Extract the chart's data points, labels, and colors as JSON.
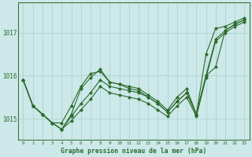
{
  "title": "Graphe pression niveau de la mer (hPa)",
  "bg_color": "#cce8e8",
  "grid_color": "#aacfcf",
  "line_color": "#2d6b2d",
  "xlim": [
    -0.5,
    23.5
  ],
  "ylim": [
    1014.5,
    1017.7
  ],
  "yticks": [
    1015,
    1016,
    1017
  ],
  "xticks": [
    0,
    1,
    2,
    3,
    4,
    5,
    6,
    7,
    8,
    9,
    10,
    11,
    12,
    13,
    14,
    15,
    16,
    17,
    18,
    19,
    20,
    21,
    22,
    23
  ],
  "lines": [
    [
      1015.9,
      1015.3,
      1015.1,
      1014.9,
      1014.75,
      1014.95,
      1015.2,
      1015.45,
      1015.75,
      1015.6,
      1015.55,
      1015.5,
      1015.45,
      1015.35,
      1015.2,
      1015.05,
      1015.3,
      1015.5,
      1015.05,
      1015.95,
      1016.8,
      1017.0,
      1017.15,
      1017.25
    ],
    [
      1015.9,
      1015.3,
      1015.1,
      1014.9,
      1014.75,
      1015.05,
      1015.35,
      1015.6,
      1015.9,
      1015.75,
      1015.7,
      1015.65,
      1015.6,
      1015.5,
      1015.35,
      1015.15,
      1015.4,
      1015.6,
      1015.1,
      1016.0,
      1016.85,
      1017.05,
      1017.2,
      1017.3
    ],
    [
      1015.9,
      1015.3,
      1015.1,
      1014.9,
      1014.9,
      1015.3,
      1015.75,
      1016.05,
      1016.1,
      1015.85,
      1015.8,
      1015.7,
      1015.65,
      1015.5,
      1015.35,
      1015.15,
      1015.4,
      1015.6,
      1015.1,
      1016.0,
      1016.2,
      1017.05,
      1017.2,
      1017.3
    ],
    [
      1015.9,
      1015.3,
      1015.1,
      1014.9,
      1014.75,
      1015.1,
      1015.7,
      1015.95,
      1016.15,
      1015.85,
      1015.8,
      1015.75,
      1015.7,
      1015.55,
      1015.4,
      1015.2,
      1015.5,
      1015.7,
      1015.1,
      1016.5,
      1017.1,
      1017.15,
      1017.25,
      1017.35
    ]
  ]
}
